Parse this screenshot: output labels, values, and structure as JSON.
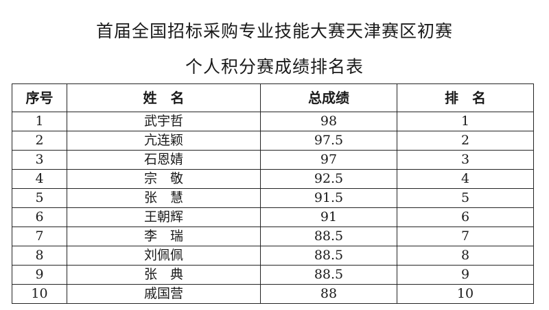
{
  "document": {
    "title_line1": "首届全国招标采购专业技能大赛天津赛区初赛",
    "title_line2": "个人积分赛成绩排名表"
  },
  "table": {
    "headers": [
      "序号",
      "姓　名",
      "总成绩",
      "排　名"
    ],
    "rows": [
      {
        "no": "1",
        "name": "武宇哲",
        "score": "98",
        "rank": "1"
      },
      {
        "no": "2",
        "name": "亢连颖",
        "score": "97.5",
        "rank": "2"
      },
      {
        "no": "3",
        "name": "石恩婧",
        "score": "97",
        "rank": "3"
      },
      {
        "no": "4",
        "name": "宗　敬",
        "score": "92.5",
        "rank": "4"
      },
      {
        "no": "5",
        "name": "张　慧",
        "score": "91.5",
        "rank": "5"
      },
      {
        "no": "6",
        "name": "王朝辉",
        "score": "91",
        "rank": "6"
      },
      {
        "no": "7",
        "name": "李　瑞",
        "score": "88.5",
        "rank": "7"
      },
      {
        "no": "8",
        "name": "刘佩佩",
        "score": "88.5",
        "rank": "8"
      },
      {
        "no": "9",
        "name": "张　典",
        "score": "88.5",
        "rank": "9"
      },
      {
        "no": "10",
        "name": "戚国营",
        "score": "88",
        "rank": "10"
      }
    ]
  }
}
